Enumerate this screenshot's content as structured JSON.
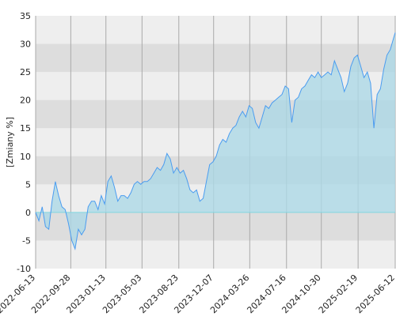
{
  "chart_data": {
    "type": "area",
    "y_label": "[Zmiany %]",
    "x": [
      "2022-06-13",
      "2022-06-23",
      "2022-07-03",
      "2022-07-13",
      "2022-07-23",
      "2022-08-02",
      "2022-08-12",
      "2022-08-22",
      "2022-09-01",
      "2022-09-11",
      "2022-09-21",
      "2022-10-01",
      "2022-10-11",
      "2022-10-21",
      "2022-10-31",
      "2022-11-10",
      "2022-11-20",
      "2022-11-30",
      "2022-12-10",
      "2022-12-20",
      "2022-12-30",
      "2023-01-09",
      "2023-01-19",
      "2023-01-29",
      "2023-02-08",
      "2023-02-18",
      "2023-02-28",
      "2023-03-10",
      "2023-03-20",
      "2023-03-30",
      "2023-04-09",
      "2023-04-19",
      "2023-04-29",
      "2023-05-09",
      "2023-05-19",
      "2023-05-29",
      "2023-06-08",
      "2023-06-18",
      "2023-06-28",
      "2023-07-08",
      "2023-07-18",
      "2023-07-28",
      "2023-08-07",
      "2023-08-17",
      "2023-08-27",
      "2023-09-06",
      "2023-09-16",
      "2023-09-26",
      "2023-10-06",
      "2023-10-16",
      "2023-10-26",
      "2023-11-05",
      "2023-11-15",
      "2023-11-25",
      "2023-12-05",
      "2023-12-15",
      "2023-12-25",
      "2024-01-04",
      "2024-01-14",
      "2024-01-24",
      "2024-02-03",
      "2024-02-13",
      "2024-02-23",
      "2024-03-04",
      "2024-03-14",
      "2024-03-24",
      "2024-04-03",
      "2024-04-13",
      "2024-04-23",
      "2024-05-03",
      "2024-05-13",
      "2024-05-23",
      "2024-06-02",
      "2024-06-12",
      "2024-06-22",
      "2024-07-02",
      "2024-07-12",
      "2024-07-22",
      "2024-08-01",
      "2024-08-11",
      "2024-08-21",
      "2024-08-31",
      "2024-09-10",
      "2024-09-20",
      "2024-09-30",
      "2024-10-10",
      "2024-10-20",
      "2024-10-30",
      "2024-11-09",
      "2024-11-19",
      "2024-11-29",
      "2024-12-09",
      "2024-12-19",
      "2024-12-29",
      "2025-01-08",
      "2025-01-18",
      "2025-01-28",
      "2025-02-07",
      "2025-02-17",
      "2025-02-27",
      "2025-03-09",
      "2025-03-19",
      "2025-03-29",
      "2025-04-08",
      "2025-04-18",
      "2025-04-28",
      "2025-05-08",
      "2025-05-18",
      "2025-05-28",
      "2025-06-07",
      "2025-06-12"
    ],
    "values": [
      0,
      -1.5,
      1,
      -2.5,
      -3,
      2,
      5.5,
      3,
      1,
      0.5,
      -2,
      -5,
      -6.5,
      -3,
      -4,
      -3,
      1,
      2,
      2,
      0.5,
      3,
      1.5,
      5.5,
      6.5,
      4.5,
      2,
      3,
      3,
      2.5,
      3.5,
      5,
      5.5,
      5,
      5.5,
      5.5,
      6,
      7,
      8,
      7.5,
      8.5,
      10.5,
      9.5,
      7,
      8,
      7,
      7.5,
      6,
      4,
      3.5,
      4,
      2,
      2.5,
      5.5,
      8.5,
      9,
      10,
      12,
      13,
      12.5,
      14,
      15,
      15.5,
      17,
      18,
      17,
      19,
      18.5,
      16,
      15,
      17,
      19,
      18.5,
      19.5,
      20,
      20.5,
      21,
      22.5,
      22,
      16,
      20,
      20.5,
      22,
      22.5,
      23.5,
      24.5,
      24,
      25,
      24,
      24.5,
      25,
      24.5,
      27,
      25.5,
      24,
      21.5,
      23,
      26,
      27.5,
      28,
      26,
      24,
      25,
      23,
      15,
      21,
      22,
      25.5,
      28,
      29,
      31,
      32
    ],
    "color": "#4a9cf0",
    "fill_color": "#add8e6",
    "xlim": [
      "2022-06-13",
      "2025-06-12"
    ],
    "xticks": [
      "2022-06-13",
      "2022-09-28",
      "2023-01-13",
      "2023-05-03",
      "2023-08-23",
      "2023-12-07",
      "2024-03-26",
      "2024-07-16",
      "2024-10-30",
      "2025-02-19",
      "2025-06-12"
    ],
    "ylim": [
      -10,
      35
    ],
    "yticks": [
      -10,
      -5,
      0,
      5,
      10,
      15,
      20,
      25,
      30,
      35
    ],
    "grid": true
  }
}
